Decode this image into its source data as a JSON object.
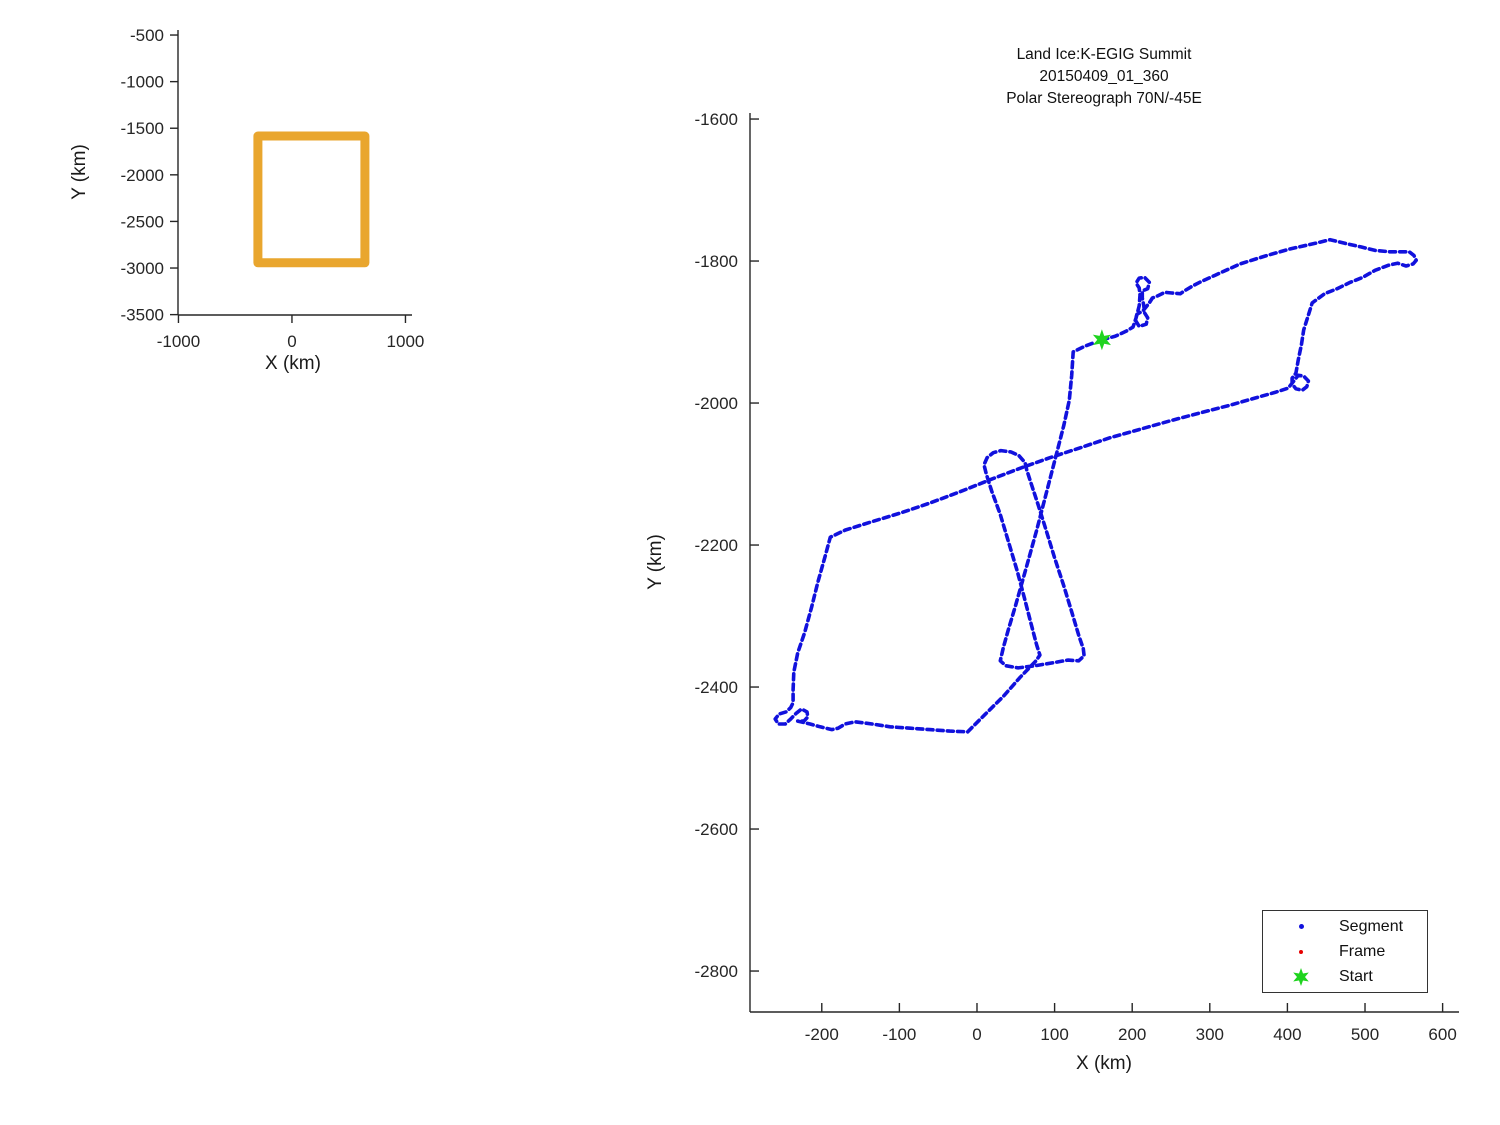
{
  "figure": {
    "background": "#ffffff"
  },
  "colors": {
    "track_blue": "#1111dd",
    "coverage_orange": "#e9a62e",
    "start_green": "#1fd41f",
    "frame_red": "#e60000",
    "axis_color": "#262626",
    "text_color": "#1a1a1a"
  },
  "chart_data": [
    {
      "name": "overview-inset",
      "type": "line",
      "title": "",
      "xlabel": "X (km)",
      "ylabel": "Y (km)",
      "xlim": [
        -1004,
        1040
      ],
      "ylim": [
        -3504,
        -446
      ],
      "x_ticks": [
        -1000,
        0,
        1000
      ],
      "y_ticks": [
        -500,
        -1000,
        -1500,
        -2000,
        -2500,
        -3000,
        -3500
      ],
      "grid": false,
      "tick_direction": "out",
      "series": [
        {
          "name": "coverage-box",
          "color": "#e9a62e",
          "linewidth": 9,
          "points": [
            [
              -300,
              -1583
            ],
            [
              643,
              -1583
            ],
            [
              643,
              -2944
            ],
            [
              -300,
              -2944
            ],
            [
              -300,
              -1583
            ]
          ]
        }
      ]
    },
    {
      "name": "flight-track",
      "type": "line",
      "title_lines": [
        "Land Ice:K-EGIG Summit",
        "20150409_01_360",
        "Polar Stereograph 70N/-45E"
      ],
      "xlabel": "X (km)",
      "ylabel": "Y (km)",
      "xlim": [
        -292.5,
        622.4
      ],
      "ylim": [
        -2857.7,
        -1591.5
      ],
      "x_ticks": [
        -200,
        -100,
        0,
        100,
        200,
        300,
        400,
        500,
        600
      ],
      "y_ticks": [
        -1600,
        -1800,
        -2000,
        -2200,
        -2400,
        -2600,
        -2800
      ],
      "grid": false,
      "tick_direction": "in",
      "legend": {
        "position": "lower right",
        "entries": [
          {
            "label": "Segment",
            "marker": "dot",
            "color": "#1111dd"
          },
          {
            "label": "Frame",
            "marker": "dot",
            "color": "#e60000"
          },
          {
            "label": "Start",
            "marker": "star",
            "color": "#1fd41f"
          }
        ]
      },
      "start_marker": {
        "x": 161,
        "y": -1911
      },
      "series": [
        {
          "name": "Segment",
          "color": "#1111dd",
          "linewidth": 3.6,
          "points": [
            [
              161,
              -1911
            ],
            [
              178,
              -1906
            ],
            [
              192,
              -1899
            ],
            [
              201,
              -1893
            ],
            [
              205,
              -1880
            ],
            [
              209,
              -1863
            ],
            [
              210,
              -1848
            ],
            [
              209,
              -1838
            ],
            [
              205,
              -1831
            ],
            [
              209,
              -1824
            ],
            [
              216,
              -1823
            ],
            [
              222,
              -1830
            ],
            [
              220,
              -1839
            ],
            [
              213,
              -1842
            ],
            [
              213,
              -1852
            ],
            [
              215,
              -1863
            ],
            [
              216,
              -1873
            ],
            [
              220,
              -1880
            ],
            [
              218,
              -1889
            ],
            [
              209,
              -1892
            ],
            [
              204,
              -1883
            ],
            [
              206,
              -1875
            ],
            [
              214,
              -1870
            ],
            [
              222,
              -1859
            ],
            [
              226,
              -1852
            ],
            [
              233,
              -1849
            ],
            [
              242,
              -1844
            ],
            [
              251,
              -1845
            ],
            [
              262,
              -1846
            ],
            [
              269,
              -1841
            ],
            [
              278,
              -1835
            ],
            [
              287,
              -1830
            ],
            [
              307,
              -1820
            ],
            [
              339,
              -1804
            ],
            [
              371,
              -1793
            ],
            [
              403,
              -1783
            ],
            [
              436,
              -1775
            ],
            [
              455,
              -1770
            ],
            [
              474,
              -1775
            ],
            [
              494,
              -1780
            ],
            [
              513,
              -1785
            ],
            [
              532,
              -1787
            ],
            [
              548,
              -1787
            ],
            [
              557,
              -1787
            ],
            [
              563,
              -1792
            ],
            [
              566,
              -1799
            ],
            [
              562,
              -1804
            ],
            [
              553,
              -1807
            ],
            [
              542,
              -1803
            ],
            [
              530,
              -1806
            ],
            [
              513,
              -1813
            ],
            [
              497,
              -1823
            ],
            [
              481,
              -1830
            ],
            [
              464,
              -1839
            ],
            [
              448,
              -1846
            ],
            [
              438,
              -1854
            ],
            [
              432,
              -1859
            ],
            [
              427,
              -1876
            ],
            [
              421,
              -1897
            ],
            [
              418,
              -1918
            ],
            [
              414,
              -1939
            ],
            [
              411,
              -1958
            ],
            [
              406,
              -1965
            ],
            [
              406,
              -1973
            ],
            [
              411,
              -1980
            ],
            [
              419,
              -1982
            ],
            [
              425,
              -1977
            ],
            [
              427,
              -1969
            ],
            [
              421,
              -1962
            ],
            [
              414,
              -1961
            ],
            [
              401,
              -1979
            ],
            [
              384,
              -1985
            ],
            [
              358,
              -1993
            ],
            [
              326,
              -2003
            ],
            [
              287,
              -2014
            ],
            [
              249,
              -2025
            ],
            [
              210,
              -2037
            ],
            [
              171,
              -2049
            ],
            [
              133,
              -2063
            ],
            [
              94,
              -2077
            ],
            [
              55,
              -2092
            ],
            [
              17,
              -2108
            ],
            [
              -22,
              -2125
            ],
            [
              -61,
              -2141
            ],
            [
              -99,
              -2155
            ],
            [
              -138,
              -2168
            ],
            [
              -170,
              -2179
            ],
            [
              -189,
              -2189
            ],
            [
              -196,
              -2217
            ],
            [
              -205,
              -2252
            ],
            [
              -213,
              -2287
            ],
            [
              -222,
              -2323
            ],
            [
              -231,
              -2352
            ],
            [
              -236,
              -2379
            ],
            [
              -237,
              -2404
            ],
            [
              -237,
              -2422
            ],
            [
              -240,
              -2429
            ],
            [
              -246,
              -2435
            ],
            [
              -255,
              -2438
            ],
            [
              -260,
              -2445
            ],
            [
              -256,
              -2452
            ],
            [
              -247,
              -2452
            ],
            [
              -240,
              -2445
            ],
            [
              -233,
              -2437
            ],
            [
              -226,
              -2431
            ],
            [
              -219,
              -2435
            ],
            [
              -218,
              -2442
            ],
            [
              -223,
              -2448
            ],
            [
              -231,
              -2448
            ],
            [
              -215,
              -2452
            ],
            [
              -202,
              -2456
            ],
            [
              -187,
              -2460
            ],
            [
              -179,
              -2458
            ],
            [
              -170,
              -2452
            ],
            [
              -157,
              -2449
            ],
            [
              -135,
              -2452
            ],
            [
              -112,
              -2456
            ],
            [
              -86,
              -2458
            ],
            [
              -61,
              -2460
            ],
            [
              -35,
              -2462
            ],
            [
              -12,
              -2463
            ],
            [
              10,
              -2439
            ],
            [
              34,
              -2413
            ],
            [
              55,
              -2387
            ],
            [
              76,
              -2363
            ],
            [
              81,
              -2355
            ],
            [
              77,
              -2341
            ],
            [
              70,
              -2312
            ],
            [
              61,
              -2274
            ],
            [
              52,
              -2237
            ],
            [
              41,
              -2197
            ],
            [
              30,
              -2157
            ],
            [
              19,
              -2124
            ],
            [
              12,
              -2100
            ],
            [
              9,
              -2087
            ],
            [
              13,
              -2077
            ],
            [
              21,
              -2070
            ],
            [
              31,
              -2067
            ],
            [
              44,
              -2069
            ],
            [
              54,
              -2074
            ],
            [
              62,
              -2084
            ],
            [
              64,
              -2094
            ],
            [
              70,
              -2114
            ],
            [
              79,
              -2144
            ],
            [
              89,
              -2179
            ],
            [
              100,
              -2218
            ],
            [
              112,
              -2258
            ],
            [
              122,
              -2294
            ],
            [
              131,
              -2327
            ],
            [
              137,
              -2346
            ],
            [
              138,
              -2356
            ],
            [
              131,
              -2363
            ],
            [
              117,
              -2362
            ],
            [
              97,
              -2366
            ],
            [
              75,
              -2370
            ],
            [
              53,
              -2373
            ],
            [
              37,
              -2370
            ],
            [
              30,
              -2363
            ],
            [
              34,
              -2344
            ],
            [
              41,
              -2317
            ],
            [
              50,
              -2284
            ],
            [
              58,
              -2253
            ],
            [
              67,
              -2218
            ],
            [
              77,
              -2179
            ],
            [
              86,
              -2141
            ],
            [
              95,
              -2103
            ],
            [
              104,
              -2065
            ],
            [
              112,
              -2031
            ],
            [
              119,
              -1996
            ],
            [
              122,
              -1961
            ],
            [
              124,
              -1928
            ],
            [
              139,
              -1920
            ],
            [
              153,
              -1914
            ]
          ]
        }
      ]
    }
  ],
  "legend": {
    "entries": [
      {
        "label": "Segment"
      },
      {
        "label": "Frame"
      },
      {
        "label": "Start"
      }
    ]
  }
}
